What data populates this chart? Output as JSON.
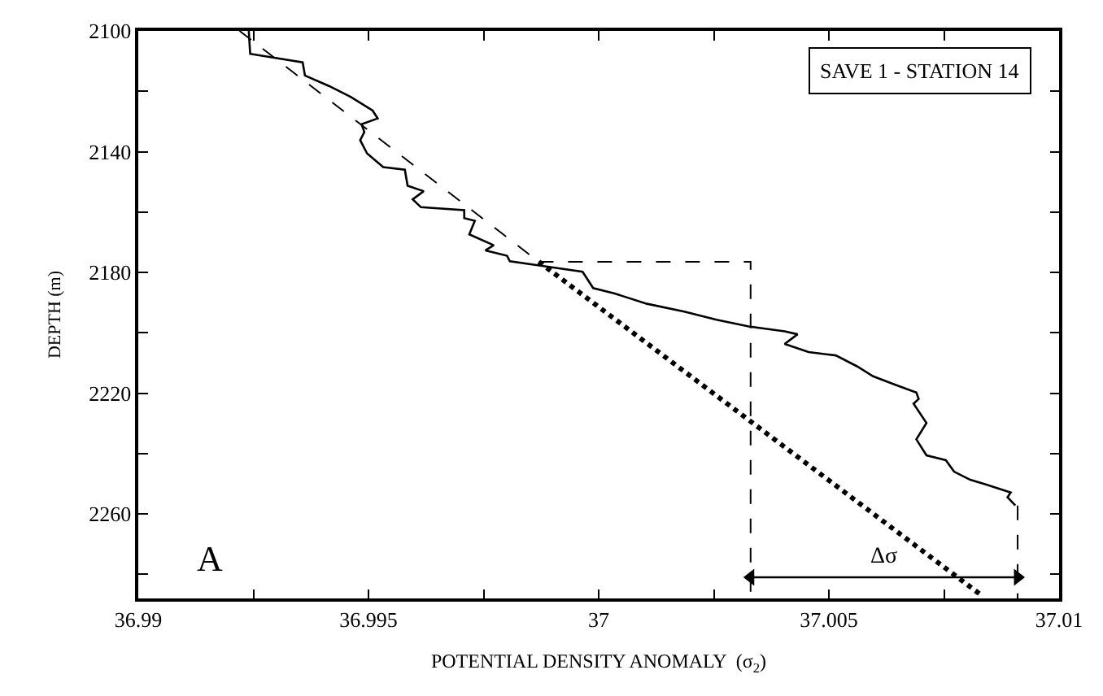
{
  "chart_data": {
    "type": "line",
    "xlabel": "POTENTIAL DENSITY ANOMALY  (σ$_{2}$)",
    "ylabel": "DEPTH (m)",
    "xlim": [
      36.99,
      37.01
    ],
    "xticks": [
      36.99,
      {
        "value": 36.9925,
        "label": null
      },
      36.995,
      {
        "value": 36.9975,
        "label": null
      },
      37,
      {
        "value": 37.0025,
        "label": null
      },
      37.005,
      {
        "value": 37.0075,
        "label": null
      },
      37.01
    ],
    "ylim": [
      2288,
      2100
    ],
    "yticks": [
      2100,
      {
        "value": 2120,
        "label": null
      },
      2140,
      {
        "value": 2160,
        "label": null
      },
      2180,
      {
        "value": 2200,
        "label": null
      },
      2220,
      {
        "value": 2240,
        "label": null
      },
      2260,
      {
        "value": 2280,
        "label": null
      }
    ],
    "series": [
      {
        "color": "#000000",
        "line_style": "solid",
        "x": [
          36.9924,
          36.99243,
          36.99357,
          36.99362,
          36.99415,
          36.99462,
          36.99509,
          36.9952,
          36.99485,
          36.99491,
          36.99482,
          36.99497,
          36.99532,
          36.99579,
          36.99585,
          36.9962,
          36.99596,
          36.99614,
          36.99708,
          36.99708,
          36.99731,
          36.99719,
          36.99772,
          36.99754,
          36.99801,
          36.99807,
          36.99871,
          36.99965,
          36.99988,
          37.00035,
          37.00105,
          37.00186,
          37.00256,
          37.00326,
          37.00404,
          37.00432,
          37.00404,
          37.00456,
          37.00515,
          37.00561,
          37.00596,
          37.00642,
          37.0069,
          37.00695,
          37.00684,
          37.00712,
          37.0069,
          37.00712,
          37.00754,
          37.00772,
          37.00807,
          37.00842,
          37.00895,
          37.00888,
          37.00905
        ],
        "values": [
          2100,
          2107.6,
          2110.4,
          2114.8,
          2118.3,
          2121.9,
          2126.4,
          2129,
          2130.9,
          2133.5,
          2136.2,
          2140.6,
          2145.1,
          2146,
          2151.3,
          2153.1,
          2155.8,
          2158.4,
          2159.4,
          2162,
          2162.9,
          2167.4,
          2171,
          2172.7,
          2174.5,
          2176.3,
          2177.7,
          2179.8,
          2185.2,
          2187,
          2190.4,
          2193,
          2195.7,
          2197.9,
          2199.5,
          2200.5,
          2203.7,
          2206.4,
          2207.5,
          2211.1,
          2214.4,
          2217.1,
          2219.8,
          2221.9,
          2223.5,
          2229.9,
          2235.3,
          2240.6,
          2242.2,
          2246,
          2248.7,
          2250.3,
          2252.9,
          2254.5,
          2257.2
        ]
      },
      {
        "color": "#000000",
        "line_style": "dashed",
        "x": [
          36.9922,
          36.9987
        ],
        "values": [
          2100,
          2176.5
        ]
      },
      {
        "color": "#000000",
        "line_style": "dotted",
        "x": [
          36.9987,
          37.0083
        ],
        "values": [
          2176.5,
          2286.8
        ]
      },
      {
        "color": "#000000",
        "line_style": "dashed",
        "x": [
          36.9987,
          37.0033,
          37.0033
        ],
        "values": [
          2176.5,
          2176.5,
          2288
        ]
      },
      {
        "color": "#000000",
        "line_style": "dashed",
        "x": [
          37.0091,
          37.0091
        ],
        "values": [
          2257.2,
          2288
        ]
      },
      {
        "color": "#000000",
        "line_style": "solid",
        "marker": "triangle",
        "x": [
          37.0033,
          37.0091
        ],
        "values": [
          2281,
          2281
        ]
      }
    ],
    "annotations": [
      {
        "text": "Δσ",
        "x": 37.0062,
        "y": 2281
      },
      "SAVE 1 - STATION 14",
      "A"
    ]
  }
}
